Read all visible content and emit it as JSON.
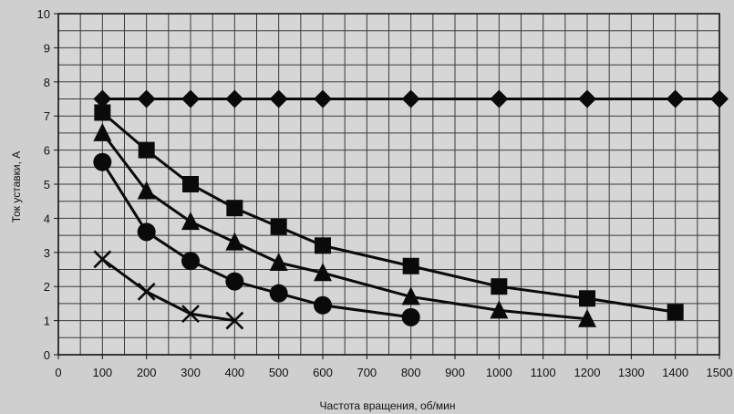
{
  "chart_data": {
    "type": "line",
    "xlabel": "Частота вращения, об/мин",
    "ylabel": "Ток уставки, А",
    "xlim": [
      0,
      1500
    ],
    "ylim": [
      0,
      10
    ],
    "x_ticks": [
      0,
      100,
      200,
      300,
      400,
      500,
      600,
      700,
      800,
      900,
      1000,
      1100,
      1200,
      1300,
      1400,
      1500
    ],
    "y_ticks": [
      0,
      1,
      2,
      3,
      4,
      5,
      6,
      7,
      8,
      9,
      10
    ],
    "grid": true,
    "series": [
      {
        "marker": "diamond",
        "x": [
          100,
          200,
          300,
          400,
          500,
          600,
          800,
          1000,
          1200,
          1400,
          1500
        ],
        "y": [
          7.5,
          7.5,
          7.5,
          7.5,
          7.5,
          7.5,
          7.5,
          7.5,
          7.5,
          7.5,
          7.5
        ]
      },
      {
        "marker": "square",
        "x": [
          100,
          200,
          300,
          400,
          500,
          600,
          800,
          1000,
          1200,
          1400
        ],
        "y": [
          7.1,
          6.0,
          5.0,
          4.3,
          3.75,
          3.2,
          2.6,
          2.0,
          1.65,
          1.25
        ]
      },
      {
        "marker": "triangle",
        "x": [
          100,
          200,
          300,
          400,
          500,
          600,
          800,
          1000,
          1200
        ],
        "y": [
          6.5,
          4.8,
          3.9,
          3.3,
          2.7,
          2.4,
          1.7,
          1.3,
          1.05
        ]
      },
      {
        "marker": "circle",
        "x": [
          100,
          200,
          300,
          400,
          500,
          600,
          800
        ],
        "y": [
          5.65,
          3.6,
          2.75,
          2.15,
          1.8,
          1.45,
          1.1
        ]
      },
      {
        "marker": "x",
        "x": [
          100,
          200,
          300,
          400
        ],
        "y": [
          2.8,
          1.85,
          1.2,
          1.0
        ]
      }
    ],
    "colors": {
      "background": "#cfcfcf",
      "grid": "#3a3a3a",
      "series": "#0a0a0a"
    }
  }
}
